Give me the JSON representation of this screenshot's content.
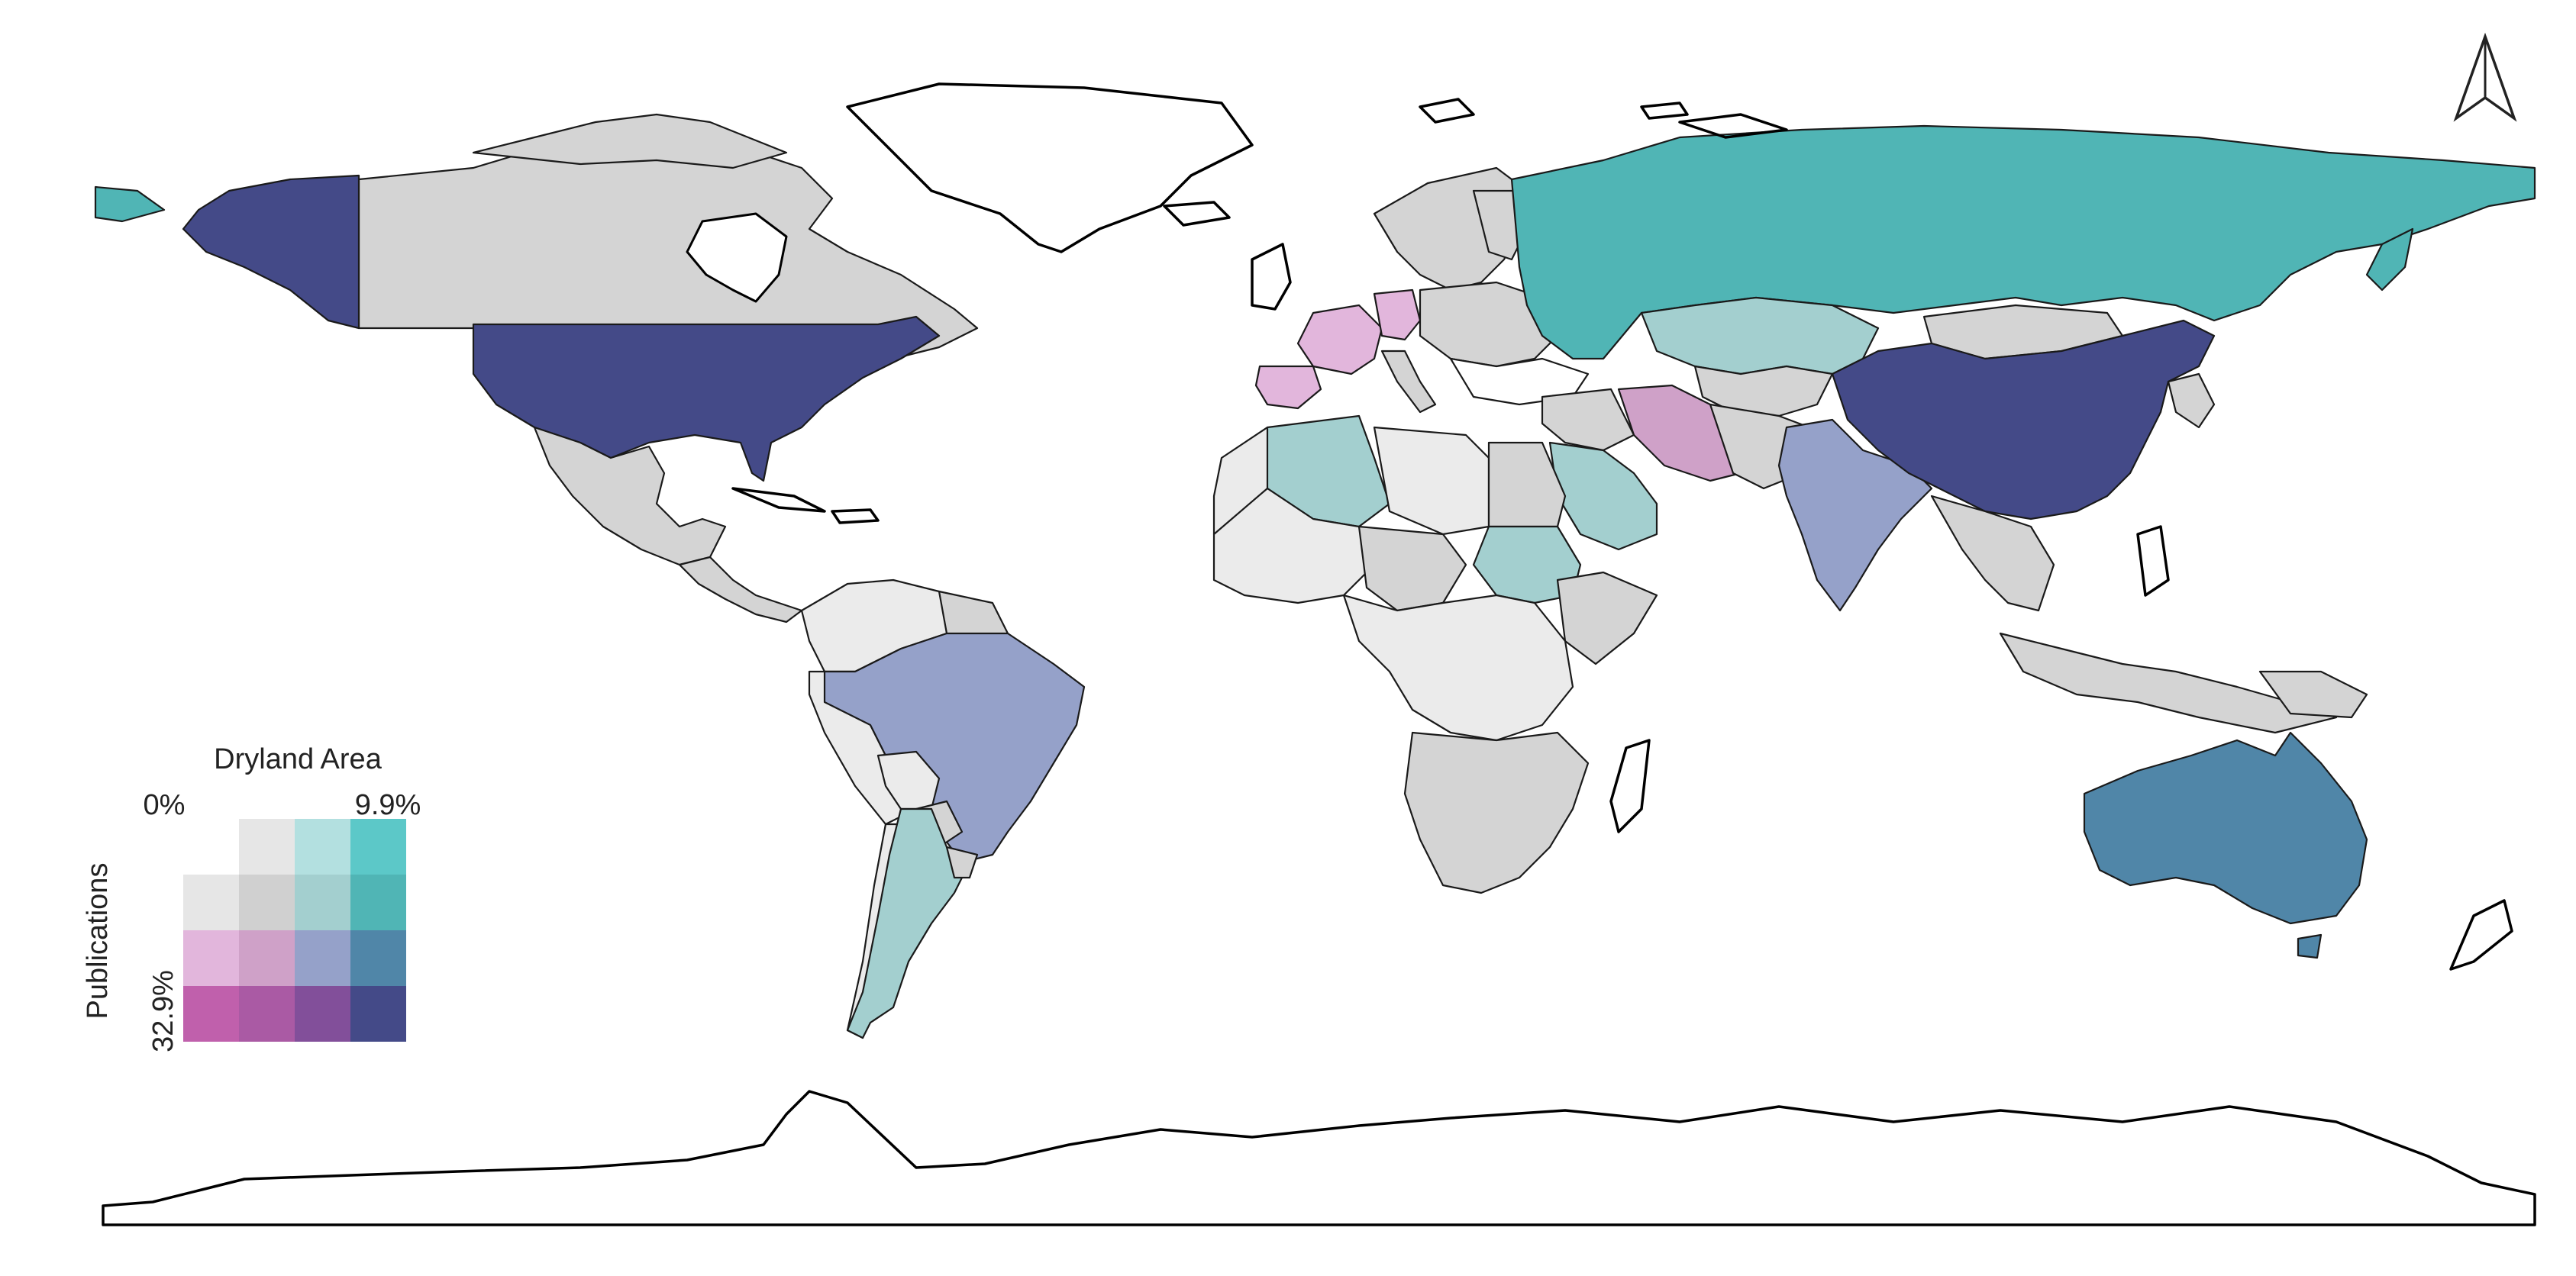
{
  "map": {
    "legend": {
      "title_x": "Dryland Area",
      "title_y": "Publications",
      "x_min_label": "0%",
      "x_max_label": "9.9%",
      "y_max_label": "32.9%",
      "grid": [
        [
          "#ffffff",
          "#e6e6e6",
          "#b3e0e0",
          "#5cc8c8"
        ],
        [
          "#e6e6e6",
          "#d0d0d0",
          "#a3cfcf",
          "#50b5b5"
        ],
        [
          "#e2b6dc",
          "#cfa1c8",
          "#95a1c9",
          "#5086a8"
        ],
        [
          "#c060ac",
          "#aa5aa4",
          "#824f9a",
          "#444a88"
        ]
      ]
    },
    "north_arrow_icon": "north-arrow-icon",
    "colors": {
      "no_data": "#ebebeb",
      "low_low": "#d4d4d4",
      "ocean": "#ffffff"
    }
  }
}
